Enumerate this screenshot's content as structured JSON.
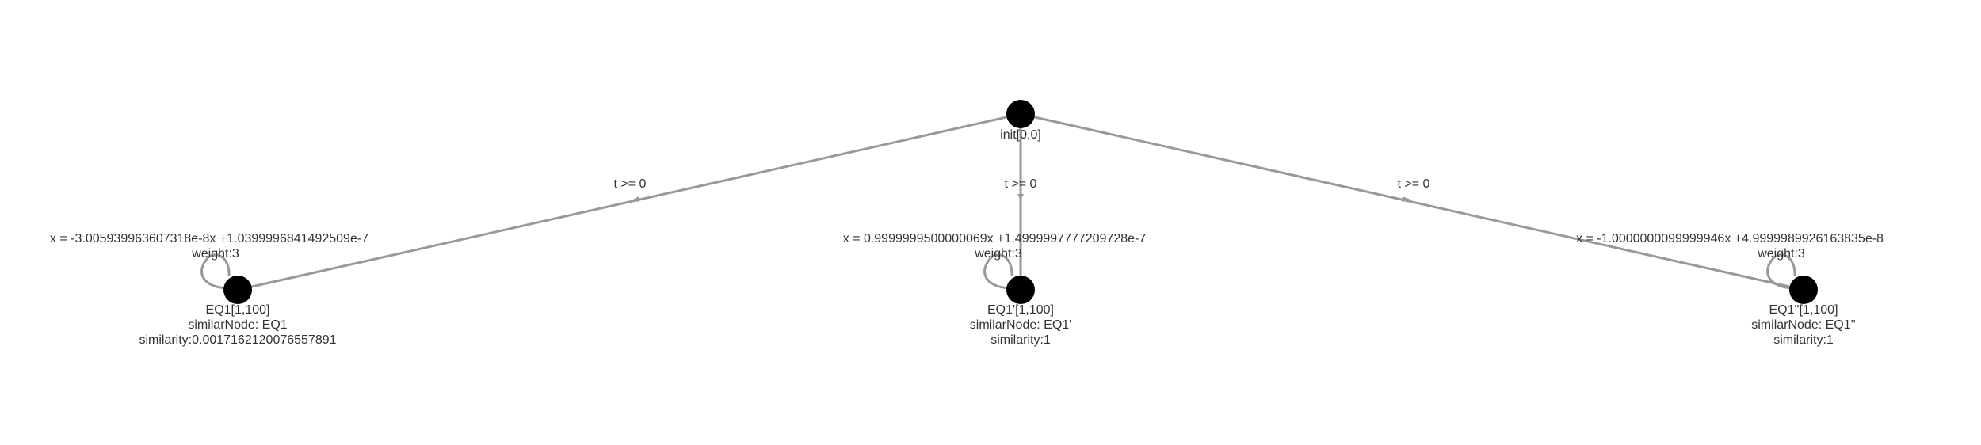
{
  "graph": {
    "nodes": [
      {
        "id": "init",
        "label": "init[0,0]"
      },
      {
        "id": "eq1",
        "label": "EQ1[1,100]",
        "similar_node": "similarNode: EQ1",
        "similarity": "similarity:0.0017162120076557891"
      },
      {
        "id": "eq1p",
        "label": "EQ1'[1,100]",
        "similar_node": "similarNode: EQ1'",
        "similarity": "similarity:1"
      },
      {
        "id": "eq1pp",
        "label": "EQ1''[1,100]",
        "similar_node": "similarNode: EQ1''",
        "similarity": "similarity:1"
      }
    ],
    "edges": [
      {
        "from": "init",
        "to": "eq1",
        "label": "t >= 0"
      },
      {
        "from": "init",
        "to": "eq1p",
        "label": "t >= 0"
      },
      {
        "from": "init",
        "to": "eq1pp",
        "label": "t >= 0"
      }
    ],
    "self_loops": [
      {
        "node": "eq1",
        "equation": "x = -3.005939963607318e-8x +1.0399996841492509e-7",
        "weight": "weight:3"
      },
      {
        "node": "eq1p",
        "equation": "x = 0.9999999500000069x +1.4999997777209728e-7",
        "weight": "weight:3"
      },
      {
        "node": "eq1pp",
        "equation": "x = -1.0000000099999946x +4.9999989926163835e-8",
        "weight": "weight:3"
      }
    ]
  }
}
